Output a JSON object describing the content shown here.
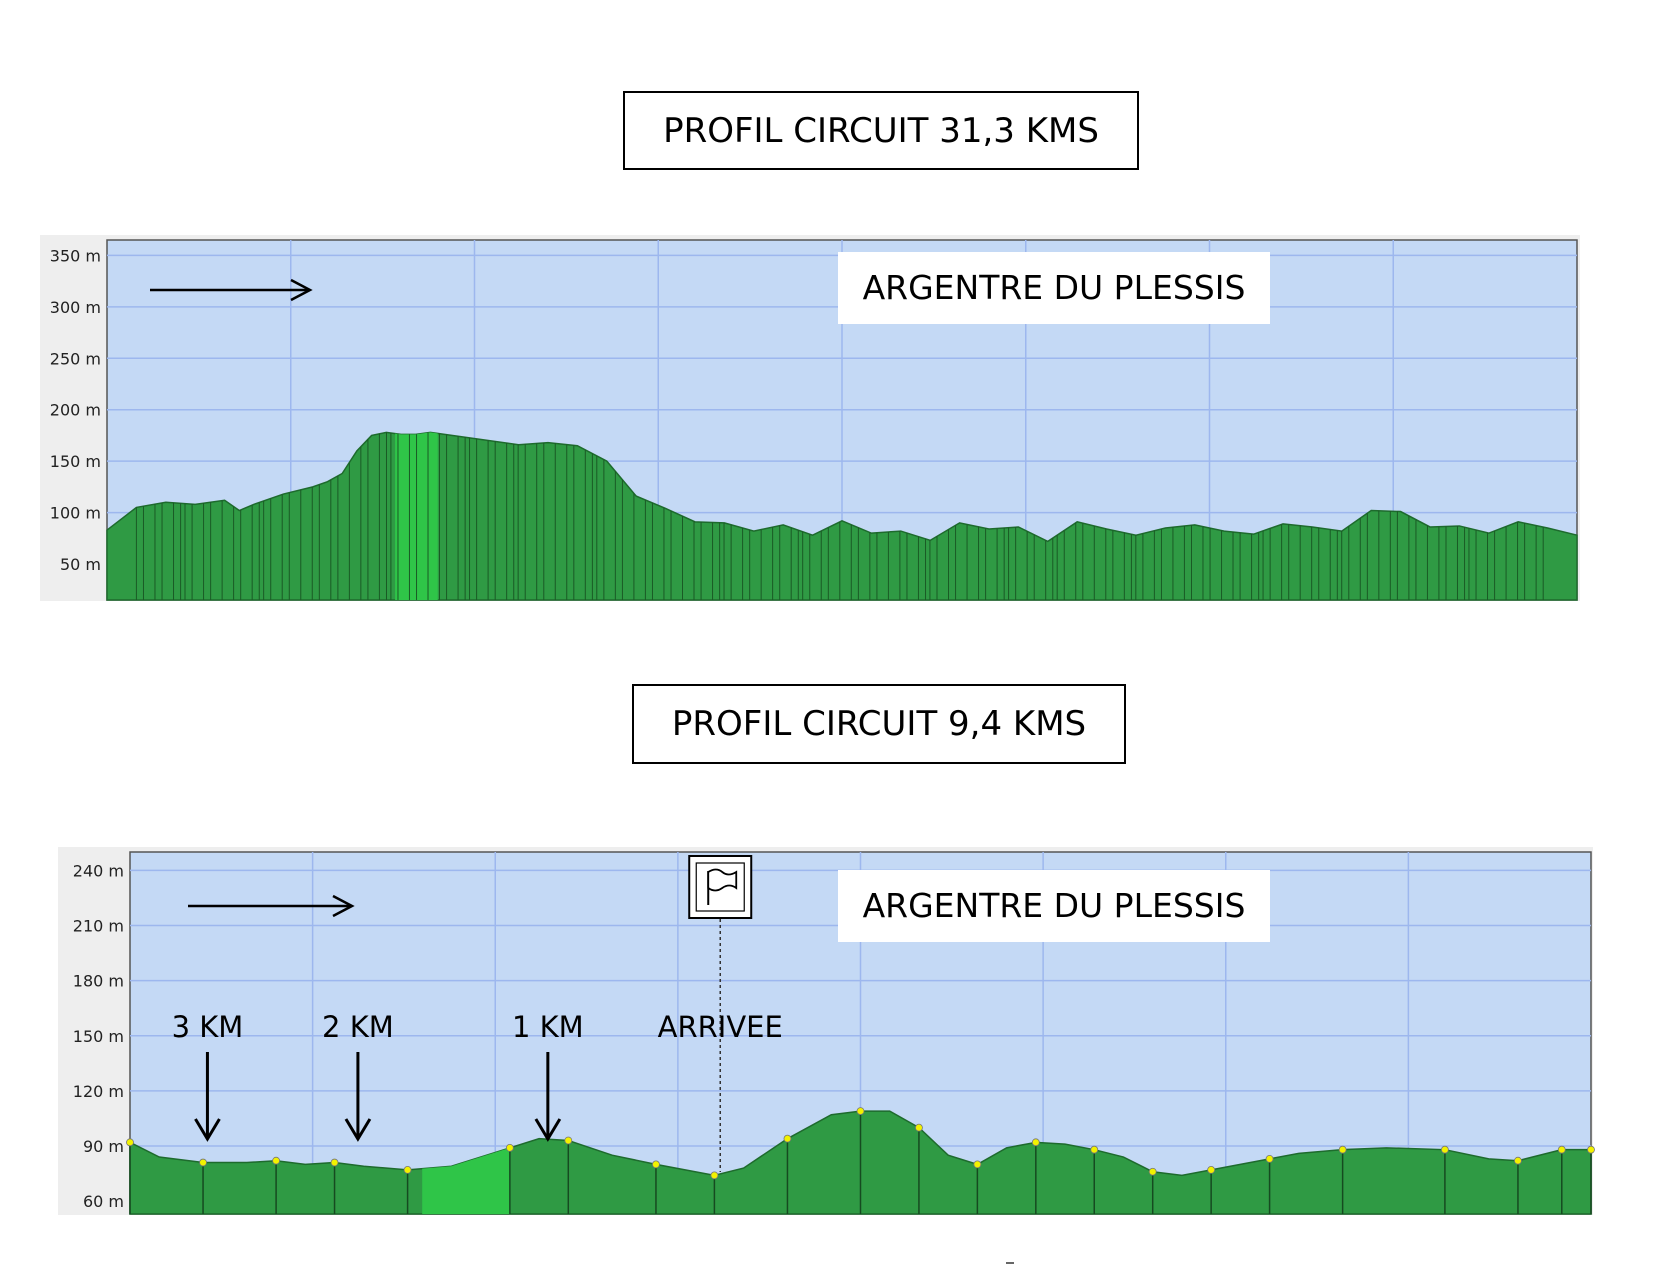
{
  "charts": [
    {
      "title": "PROFIL CIRCUIT 31,3 KMS",
      "place_label": "ARGENTRE DU PLESSIS",
      "chart_data": {
        "type": "area",
        "title": "PROFIL CIRCUIT 31,3 KMS",
        "xlabel": "",
        "ylabel": "",
        "ylim": [
          15,
          365
        ],
        "y_ticks": [
          {
            "value": 50,
            "label": "50 m"
          },
          {
            "value": 100,
            "label": "100 m"
          },
          {
            "value": 150,
            "label": "150 m"
          },
          {
            "value": 200,
            "label": "200 m"
          },
          {
            "value": 250,
            "label": "250 m"
          },
          {
            "value": 300,
            "label": "300 m"
          },
          {
            "value": 350,
            "label": "350 m"
          }
        ],
        "grid": true,
        "direction_arrow": "right",
        "highlight_range": [
          0.196,
          0.225
        ],
        "x": [
          0,
          0.02,
          0.04,
          0.06,
          0.08,
          0.09,
          0.1,
          0.12,
          0.14,
          0.15,
          0.16,
          0.17,
          0.18,
          0.19,
          0.2,
          0.21,
          0.22,
          0.24,
          0.26,
          0.28,
          0.3,
          0.32,
          0.34,
          0.36,
          0.38,
          0.4,
          0.42,
          0.44,
          0.46,
          0.48,
          0.5,
          0.52,
          0.54,
          0.56,
          0.58,
          0.6,
          0.62,
          0.64,
          0.66,
          0.68,
          0.7,
          0.72,
          0.74,
          0.76,
          0.78,
          0.8,
          0.82,
          0.84,
          0.86,
          0.88,
          0.9,
          0.92,
          0.94,
          0.96,
          0.98,
          1.0
        ],
        "y": [
          83,
          105,
          110,
          108,
          112,
          102,
          108,
          118,
          125,
          130,
          138,
          160,
          175,
          178,
          176,
          176,
          178,
          174,
          170,
          166,
          168,
          165,
          150,
          116,
          104,
          91,
          90,
          82,
          88,
          78,
          92,
          80,
          82,
          73,
          90,
          84,
          86,
          72,
          91,
          84,
          78,
          85,
          88,
          82,
          79,
          89,
          86,
          82,
          102,
          101,
          86,
          87,
          80,
          91,
          85,
          78
        ]
      }
    },
    {
      "title": "PROFIL CIRCUIT 9,4 KMS",
      "place_label": "ARGENTRE DU PLESSIS",
      "finish_label": "ARRIVEE",
      "km_markers": [
        {
          "label": "3 KM",
          "x": 0.053
        },
        {
          "label": "2 KM",
          "x": 0.156
        },
        {
          "label": "1 KM",
          "x": 0.286
        }
      ],
      "finish_x": 0.404,
      "chart_data": {
        "type": "area",
        "title": "PROFIL CIRCUIT 9,4 KMS",
        "xlabel": "",
        "ylabel": "",
        "ylim": [
          53,
          250
        ],
        "y_ticks": [
          {
            "value": 60,
            "label": "60 m"
          },
          {
            "value": 90,
            "label": "90 m"
          },
          {
            "value": 120,
            "label": "120 m"
          },
          {
            "value": 150,
            "label": "150 m"
          },
          {
            "value": 180,
            "label": "180 m"
          },
          {
            "value": 210,
            "label": "210 m"
          },
          {
            "value": 240,
            "label": "240 m"
          }
        ],
        "grid": true,
        "direction_arrow": "right",
        "highlight_range": [
          0.2,
          0.26
        ],
        "x": [
          0,
          0.02,
          0.05,
          0.08,
          0.1,
          0.12,
          0.14,
          0.16,
          0.19,
          0.22,
          0.26,
          0.28,
          0.3,
          0.33,
          0.36,
          0.38,
          0.4,
          0.42,
          0.45,
          0.48,
          0.5,
          0.52,
          0.54,
          0.56,
          0.58,
          0.6,
          0.62,
          0.64,
          0.66,
          0.68,
          0.7,
          0.72,
          0.74,
          0.76,
          0.78,
          0.8,
          0.83,
          0.86,
          0.9,
          0.93,
          0.95,
          0.96,
          0.98,
          1.0
        ],
        "x_anchor": [
          0.0,
          1.0
        ],
        "y": [
          92,
          84,
          81,
          81,
          82,
          80,
          81,
          79,
          77,
          79,
          89,
          94,
          93,
          85,
          80,
          77,
          74,
          78,
          94,
          107,
          109,
          109,
          100,
          85,
          80,
          89,
          92,
          91,
          88,
          84,
          76,
          74,
          77,
          80,
          83,
          86,
          88,
          89,
          88,
          83,
          82,
          84,
          88,
          88
        ]
      }
    }
  ],
  "colors": {
    "plot_background": "#c4d9f5",
    "grid": "#9db7ee",
    "terrain": "#2f9a44",
    "terrain_highlight": "#2fc548",
    "terrain_stripe": "#1a5a25",
    "marker": "#f2f200"
  },
  "icons": {
    "finish": "flag-icon"
  }
}
